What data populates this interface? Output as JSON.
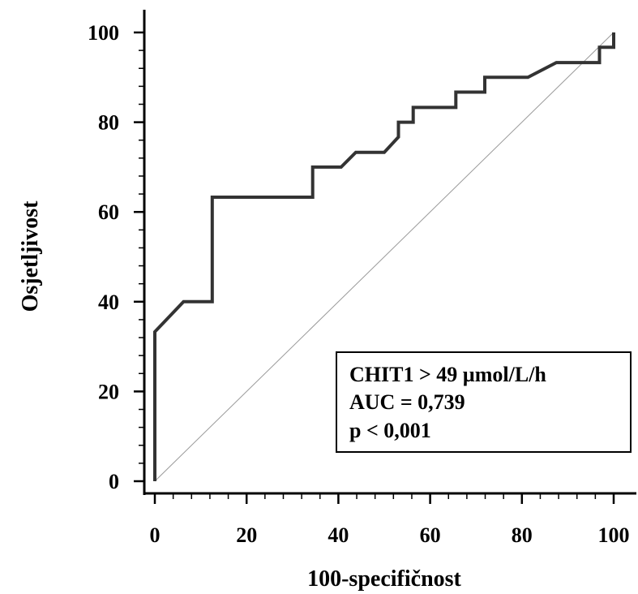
{
  "chart_data": {
    "type": "line",
    "xlabel": "100-specifičnost",
    "ylabel": "Osjetljivost",
    "xlim": [
      0,
      100
    ],
    "ylim": [
      0,
      100
    ],
    "xticks": [
      "0",
      "20",
      "40",
      "60",
      "80",
      "100"
    ],
    "yticks": [
      "0",
      "20",
      "40",
      "60",
      "80",
      "100"
    ],
    "grid": false,
    "series": [
      {
        "type": "step",
        "color": "#333333",
        "x": [
          0,
          0,
          6.25,
          12.5,
          12.5,
          34.4,
          34.4,
          40.6,
          43.8,
          50.0,
          53.1,
          53.1,
          56.3,
          56.3,
          65.6,
          65.6,
          71.9,
          71.9,
          81.3,
          87.5,
          96.9,
          96.9,
          100,
          100
        ],
        "y": [
          0,
          33.3,
          40.0,
          40.0,
          63.3,
          63.3,
          70.0,
          70.0,
          73.3,
          73.3,
          76.7,
          80.0,
          80.0,
          83.3,
          83.3,
          86.7,
          86.7,
          90.0,
          90.0,
          93.3,
          93.3,
          96.7,
          96.7,
          100
        ]
      },
      {
        "type": "reference",
        "color": "#999999",
        "x": [
          0,
          100
        ],
        "y": [
          0,
          100
        ]
      }
    ],
    "annotation": {
      "lines": [
        "CHIT1 > 49 µmol/L/h",
        "AUC = 0,739",
        "p < 0,001"
      ],
      "position": "bottom-right"
    }
  }
}
